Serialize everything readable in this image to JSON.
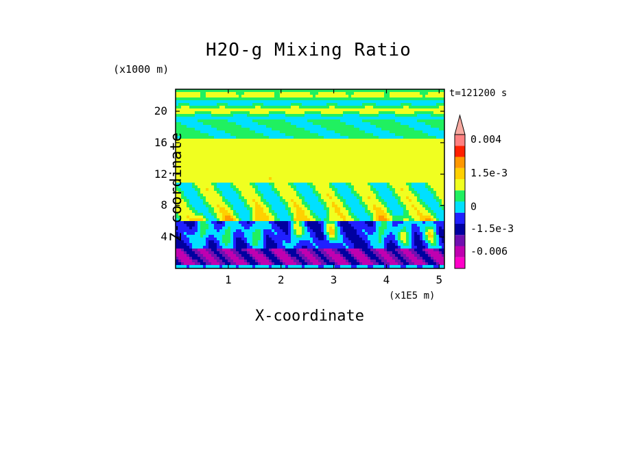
{
  "chart_data": {
    "type": "heatmap",
    "title": "H2O-g Mixing Ratio",
    "xlabel": "X-coordinate",
    "ylabel": "Z-coordinate",
    "x_unit_label": "(x1E5 m)",
    "y_unit_label": "(x1000 m)",
    "time_label": "t=121200 s",
    "xlim": [
      0.0,
      5.1
    ],
    "ylim": [
      0.0,
      22.8
    ],
    "x_ticks": [
      1,
      2,
      3,
      4,
      5
    ],
    "x_tick_labels": [
      "1",
      "2",
      "3",
      "4",
      "5"
    ],
    "y_ticks": [
      4,
      8,
      12,
      16,
      20
    ],
    "y_tick_labels": [
      "4",
      "8",
      "12",
      "16",
      "20"
    ],
    "colorbar": {
      "levels": [
        -0.009,
        -0.006,
        -0.0045,
        -0.0015,
        -0.0008,
        0,
        0.0005,
        0.001,
        0.0015,
        0.002,
        0.003,
        0.004
      ],
      "colors": [
        "#ff00c8",
        "#c000b0",
        "#7010b0",
        "#0000a0",
        "#2020ff",
        "#00e0ff",
        "#20f060",
        "#f0ff20",
        "#ffd000",
        "#ff9800",
        "#ff2000",
        "#ff8080",
        "#f7a9a0"
      ],
      "labels": [
        "0.004",
        "1.5e-3",
        "0",
        "-1.5e-3",
        "-0.006"
      ],
      "label_values": [
        0.004,
        0.0015,
        0,
        -0.0015,
        -0.006
      ]
    },
    "field_summary": {
      "bands": [
        {
          "z_range": [
            19,
            22.8
          ],
          "description": "green with yellow horizontal streaks"
        },
        {
          "z_range": [
            11,
            16
          ],
          "description": "mostly yellow"
        },
        {
          "z_range": [
            6,
            11
          ],
          "description": "green/yellow plumes with cyan"
        },
        {
          "z_range": [
            2,
            7
          ],
          "description": "blue/cyan with orange convective cores"
        },
        {
          "z_range": [
            0,
            3
          ],
          "description": "purple near surface"
        }
      ],
      "plume_x": [
        0.5,
        1.0,
        1.55,
        2.3,
        2.95,
        3.9,
        4.35,
        4.85
      ]
    }
  }
}
